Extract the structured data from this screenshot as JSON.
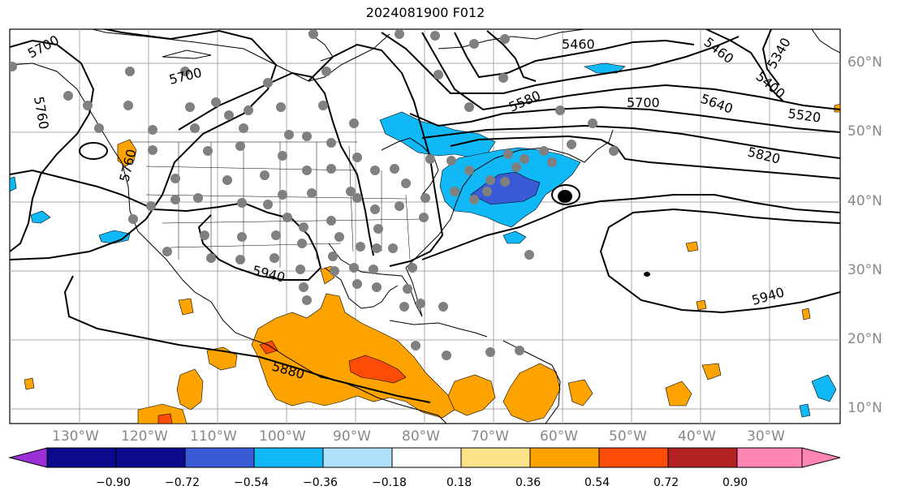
{
  "title": "2024081900 F012",
  "lat_labels": [
    "60°N",
    "50°N",
    "40°N",
    "30°N",
    "20°N",
    "10°N"
  ],
  "lon_labels": [
    "130°W",
    "120°W",
    "110°W",
    "100°W",
    "90°W",
    "80°W",
    "70°W",
    "60°W",
    "50°W",
    "40°W",
    "30°W"
  ],
  "contour_labels": [
    "5700",
    "5700",
    "5460",
    "5460",
    "5340",
    "5400",
    "5580",
    "5700",
    "5640",
    "5520",
    "5820",
    "5760",
    "5760",
    "5940",
    "5940",
    "5880"
  ],
  "colorbar": {
    "ticks": [
      "−0.90",
      "−0.72",
      "−0.54",
      "−0.36",
      "−0.18",
      "0.18",
      "0.36",
      "0.54",
      "0.72",
      "0.90"
    ],
    "colors": [
      "#9b30d8",
      "#0a0a8a",
      "#3a5ad6",
      "#10b8f5",
      "#b0e0fa",
      "#ffffff",
      "#fce38a",
      "#fca300",
      "#fc4c08",
      "#b22222",
      "#ff85b4"
    ]
  },
  "map_colors": {
    "land_outline": "#000000",
    "grid": "#a8a8a8",
    "stations": "#808080",
    "positive_field": "#fca300",
    "strong_positive": "#fc4c08",
    "negative_field": "#10b8f5",
    "strong_negative": "#3a5ad6"
  }
}
